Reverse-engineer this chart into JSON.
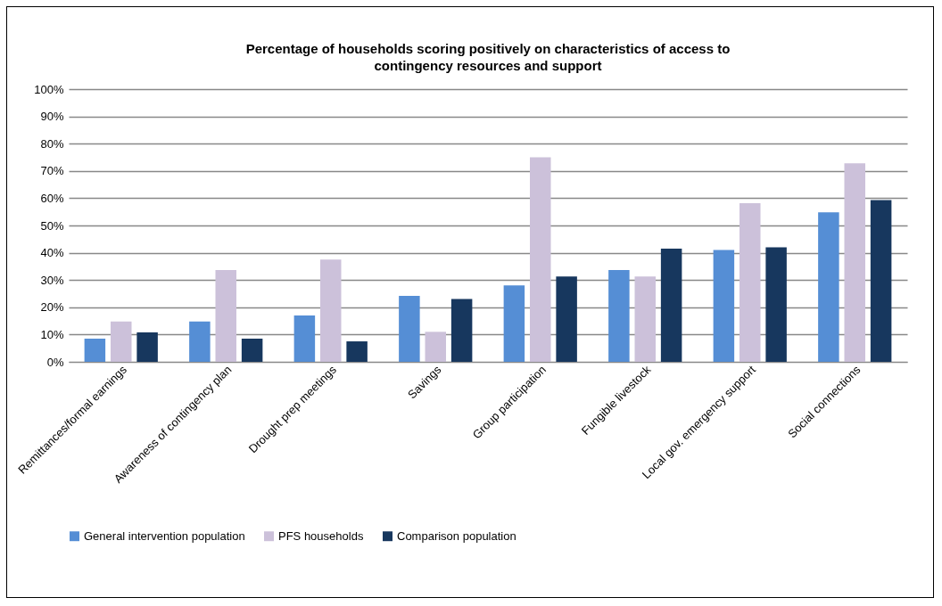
{
  "chart_data": {
    "type": "bar",
    "title": "Percentage of households scoring positively on characteristics of access to contingency resources and support",
    "categories": [
      "Remittances/formal earnings",
      "Awareness of contingency plan",
      "Drought prep meetings",
      "Savings",
      "Group participation",
      "Fungible livestock",
      "Local gov. emergency support",
      "Social connections"
    ],
    "series": [
      {
        "name": "General intervention population",
        "color": "#558ed5",
        "values": [
          8.5,
          14.8,
          17,
          24.2,
          28,
          33.7,
          41,
          54.8
        ]
      },
      {
        "name": "PFS households",
        "color": "#ccc1da",
        "values": [
          14.8,
          33.7,
          37.5,
          11,
          75,
          31.3,
          58.2,
          72.8
        ]
      },
      {
        "name": "Comparison population",
        "color": "#17375e",
        "values": [
          10.8,
          8.5,
          7.5,
          23,
          31.3,
          41.5,
          42,
          59.3
        ]
      }
    ],
    "ylim": [
      0,
      100
    ],
    "yticks": [
      {
        "value": 0,
        "label": "0%"
      },
      {
        "value": 10,
        "label": "10%"
      },
      {
        "value": 20,
        "label": "20%"
      },
      {
        "value": 30,
        "label": "30%"
      },
      {
        "value": 40,
        "label": "40%"
      },
      {
        "value": 50,
        "label": "50%"
      },
      {
        "value": 60,
        "label": "60%"
      },
      {
        "value": 70,
        "label": "70%"
      },
      {
        "value": 80,
        "label": "80%"
      },
      {
        "value": 90,
        "label": "90%"
      },
      {
        "value": 100,
        "label": "100%"
      }
    ],
    "grid": "y",
    "legend": "bottom"
  }
}
